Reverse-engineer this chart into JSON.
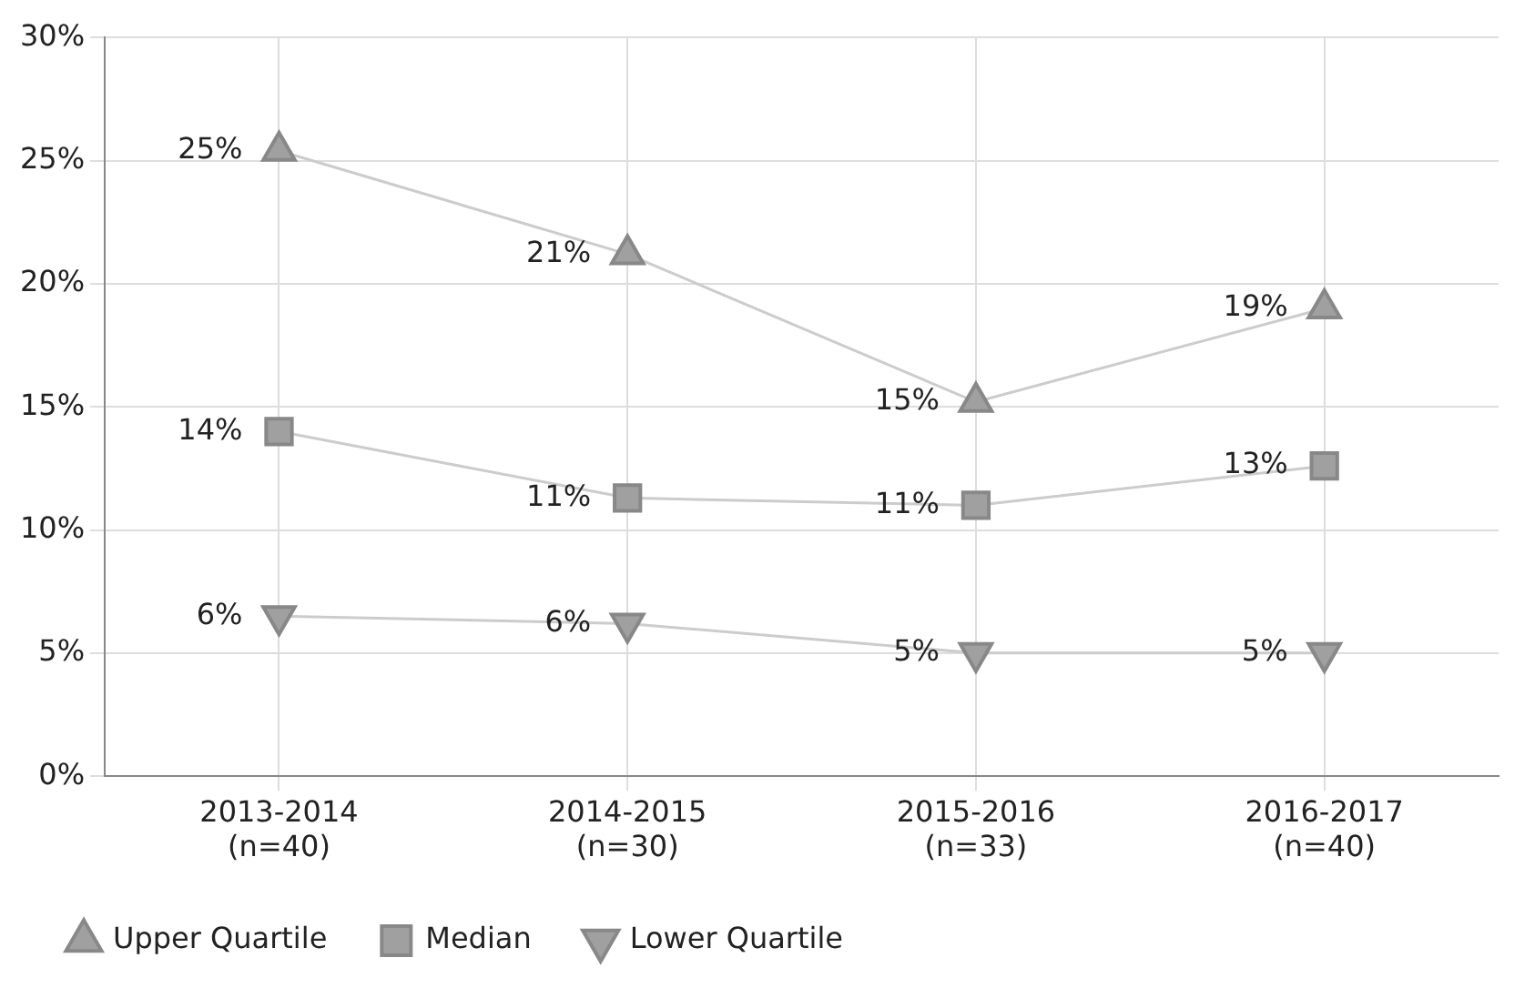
{
  "chart_data": {
    "type": "line",
    "categories": [
      "2013-2014\n(n=40)",
      "2014-2015\n(n=30)",
      "2015-2016\n(n=33)",
      "2016-2017\n(n=40)"
    ],
    "series": [
      {
        "name": "Upper Quartile",
        "color": "#a0a0a0",
        "marker": "triangle",
        "values": [
          25.4,
          21.2,
          15.2,
          19.0
        ],
        "value_labels": [
          "25%",
          "21%",
          "15%",
          "19%"
        ]
      },
      {
        "name": "Median",
        "color": "#a0a0a0",
        "marker": "square",
        "values": [
          14.0,
          11.3,
          11.0,
          12.6
        ],
        "value_labels": [
          "14%",
          "11%",
          "11%",
          "13%"
        ]
      },
      {
        "name": "Lower Quartile",
        "color": "#a0a0a0",
        "marker": "triangle-down",
        "values": [
          6.5,
          6.2,
          5.0,
          5.0
        ],
        "value_labels": [
          "6%",
          "6%",
          "5%",
          "5%"
        ]
      }
    ],
    "ylim": [
      0,
      30
    ],
    "yticks": [
      {
        "value": 0,
        "label": "0%"
      },
      {
        "value": 5,
        "label": "5%"
      },
      {
        "value": 10,
        "label": "10%"
      },
      {
        "value": 15,
        "label": "15%"
      },
      {
        "value": 20,
        "label": "20%"
      },
      {
        "value": 25,
        "label": "25%"
      },
      {
        "value": 30,
        "label": "30%"
      }
    ],
    "grid": true,
    "legend": "bottom left",
    "line_style": "solid"
  }
}
